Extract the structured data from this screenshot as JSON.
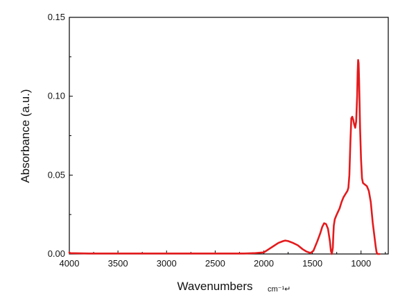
{
  "chart_data": {
    "type": "line",
    "title": "",
    "xlabel": "Wavenumbers",
    "xunit": "cm⁻¹↵",
    "ylabel": "Absorbance (a.u.)",
    "xlim": [
      4000,
      720
    ],
    "ylim": [
      0,
      0.15
    ],
    "x_reversed": true,
    "grid": false,
    "x_ticks": [
      4000,
      3500,
      3000,
      2500,
      2000,
      1500,
      1000
    ],
    "x_tick_labels": [
      "4000",
      "3500",
      "3000",
      "2500",
      "2000",
      "1500",
      "1000"
    ],
    "y_ticks": [
      0,
      0.05,
      0.1,
      0.15
    ],
    "y_tick_labels": [
      "0.00",
      "0.05",
      "0.10",
      "0.15"
    ],
    "series": [
      {
        "color": "#e41a1c",
        "x": [
          4000,
          3990,
          3800,
          3000,
          2200,
          2100,
          2000,
          1950,
          1900,
          1850,
          1800,
          1780,
          1750,
          1700,
          1650,
          1600,
          1560,
          1520,
          1490,
          1450,
          1420,
          1400,
          1380,
          1360,
          1340,
          1320,
          1310,
          1300,
          1290,
          1285,
          1280,
          1270,
          1250,
          1220,
          1200,
          1180,
          1160,
          1150,
          1140,
          1130,
          1120,
          1110,
          1100,
          1090,
          1080,
          1070,
          1060,
          1050,
          1040,
          1035,
          1030,
          1025,
          1020,
          1010,
          1000,
          990,
          980,
          960,
          940,
          920,
          900,
          880,
          860,
          850,
          840,
          830,
          820,
          810
        ],
        "y": [
          0.001,
          0.0005,
          0.0003,
          0.0003,
          0.0003,
          0.0005,
          0.001,
          0.003,
          0.005,
          0.007,
          0.0082,
          0.0085,
          0.0082,
          0.007,
          0.0055,
          0.003,
          0.0015,
          0.0006,
          0.002,
          0.008,
          0.013,
          0.017,
          0.0195,
          0.019,
          0.016,
          0.008,
          0.002,
          0.0,
          0.004,
          0.012,
          0.018,
          0.022,
          0.025,
          0.029,
          0.033,
          0.036,
          0.038,
          0.039,
          0.04,
          0.042,
          0.05,
          0.07,
          0.086,
          0.087,
          0.085,
          0.082,
          0.08,
          0.084,
          0.1,
          0.115,
          0.123,
          0.121,
          0.11,
          0.08,
          0.06,
          0.048,
          0.045,
          0.044,
          0.043,
          0.04,
          0.033,
          0.02,
          0.01,
          0.005,
          0.001,
          0.0,
          0.0,
          0.0
        ]
      }
    ]
  }
}
